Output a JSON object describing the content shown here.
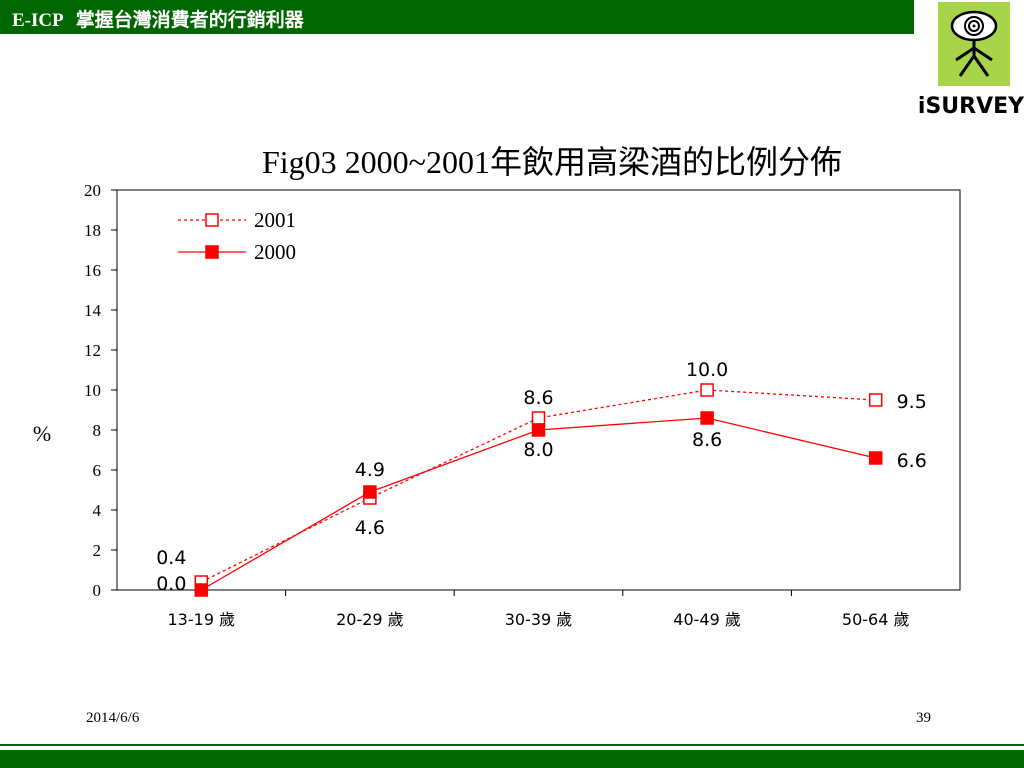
{
  "header": {
    "code": "E-ICP",
    "title": "掌握台灣消費者的行銷利器"
  },
  "logo": {
    "text": "iSURVEY"
  },
  "footer": {
    "date": "2014/6/6",
    "page": "39"
  },
  "colors": {
    "header_bg": "#006600",
    "series_color": "#ff0000"
  },
  "chart_data": {
    "type": "line",
    "title": "Fig03 2000~2001年飲用高梁酒的比例分佈",
    "ylabel": "%",
    "xlabel": "",
    "ylim": [
      0,
      20
    ],
    "yticks": [
      "0",
      "2",
      "4",
      "6",
      "8",
      "10",
      "12",
      "14",
      "16",
      "18",
      "20"
    ],
    "categories": [
      "13-19 歲",
      "20-29 歲",
      "30-39 歲",
      "40-49 歲",
      "50-64 歲"
    ],
    "legend_position": "top-left",
    "grid": false,
    "series": [
      {
        "name": "2001",
        "values": [
          0.4,
          4.6,
          8.6,
          10.0,
          9.5
        ],
        "labels": [
          "0.4",
          "4.6",
          "8.6",
          "10.0",
          "9.5"
        ],
        "style": "dotted-hollow-square"
      },
      {
        "name": "2000",
        "values": [
          0.0,
          4.9,
          8.0,
          8.6,
          6.6
        ],
        "labels": [
          "0.0",
          "4.9",
          "8.0",
          "8.6",
          "6.6"
        ],
        "style": "solid-filled-square"
      }
    ]
  }
}
